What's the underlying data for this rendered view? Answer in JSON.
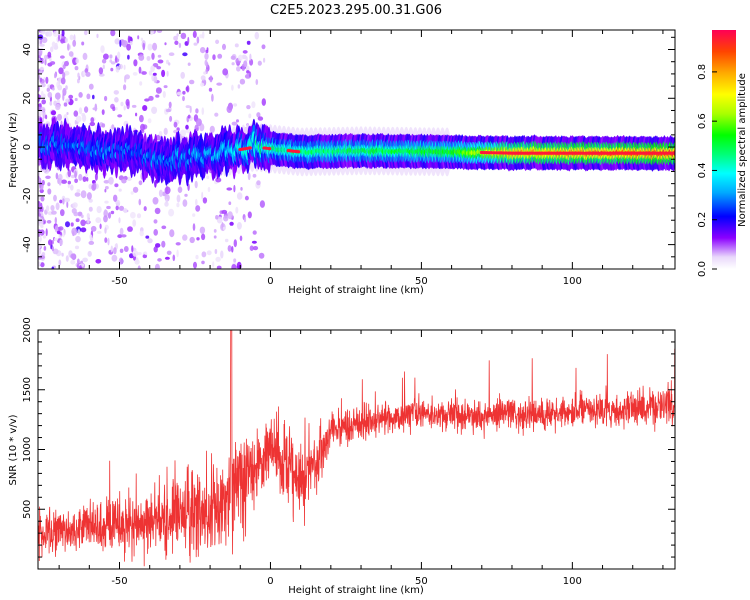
{
  "title": "C2E5.2023.295.00.31.G06",
  "chart_data": [
    {
      "type": "heatmap",
      "xlabel": "Height of straight line (km)",
      "ylabel": "Frequency (Hz)",
      "xlim": [
        -77,
        134
      ],
      "ylim": [
        -50,
        48
      ],
      "xticks": [
        -50,
        0,
        50,
        100
      ],
      "yticks": [
        -40,
        -20,
        0,
        20,
        40
      ],
      "colorbar": {
        "label": "Normalized spectral amplitude",
        "range": [
          0,
          0.97
        ],
        "ticks": [
          "0.0",
          "0.2",
          "0.4",
          "0.6",
          "0.8"
        ],
        "colors": [
          "#ffffff",
          "#e9d8fb",
          "#8b00ff",
          "#0000ff",
          "#00aaff",
          "#00ffff",
          "#00ff77",
          "#00ff00",
          "#aaff00",
          "#ffff00",
          "#ffaa00",
          "#ff4400",
          "#ff0055"
        ]
      },
      "ridge": [
        {
          "x": -77,
          "freq": 1.5,
          "amp": 0.28
        },
        {
          "x": -65,
          "freq": 0.5,
          "amp": 0.28
        },
        {
          "x": -55,
          "freq": -1,
          "amp": 0.3
        },
        {
          "x": -45,
          "freq": -2,
          "amp": 0.27
        },
        {
          "x": -35,
          "freq": -6,
          "amp": 0.3
        },
        {
          "x": -25,
          "freq": -4,
          "amp": 0.32
        },
        {
          "x": -15,
          "freq": -2,
          "amp": 0.35
        },
        {
          "x": -5,
          "freq": 0,
          "amp": 0.45
        },
        {
          "x": 10,
          "freq": -2,
          "amp": 0.48
        },
        {
          "x": 30,
          "freq": -1.5,
          "amp": 0.5
        },
        {
          "x": 60,
          "freq": -2,
          "amp": 0.55
        },
        {
          "x": 80,
          "freq": -2.5,
          "amp": 0.8
        },
        {
          "x": 100,
          "freq": -2.5,
          "amp": 0.85
        },
        {
          "x": 134,
          "freq": -2.5,
          "amp": 0.9
        }
      ]
    },
    {
      "type": "line",
      "xlabel": "Height of straight line (km)",
      "ylabel": "SNR (10 * v/v)",
      "xlim": [
        -77,
        134
      ],
      "ylim": [
        0,
        2000
      ],
      "xticks": [
        -50,
        0,
        50,
        100
      ],
      "yticks": [
        500,
        1000,
        1500,
        2000
      ],
      "color": "#ee3333",
      "series": [
        {
          "x": [
            -77,
            -70,
            -60,
            -50,
            -40,
            -30,
            -20,
            -15,
            -10,
            -5,
            0,
            5,
            10,
            15,
            20,
            25,
            30,
            40,
            50,
            60,
            70,
            80,
            90,
            100,
            110,
            120,
            134
          ],
          "mean": [
            300,
            330,
            350,
            370,
            390,
            430,
            480,
            600,
            700,
            900,
            1000,
            900,
            700,
            900,
            1150,
            1200,
            1220,
            1270,
            1300,
            1300,
            1280,
            1300,
            1300,
            1320,
            1320,
            1340,
            1380
          ],
          "spread": [
            180,
            200,
            250,
            280,
            300,
            350,
            400,
            450,
            500,
            350,
            300,
            350,
            450,
            300,
            180,
            170,
            160,
            160,
            150,
            150,
            150,
            150,
            150,
            160,
            170,
            180,
            200
          ]
        }
      ]
    }
  ]
}
